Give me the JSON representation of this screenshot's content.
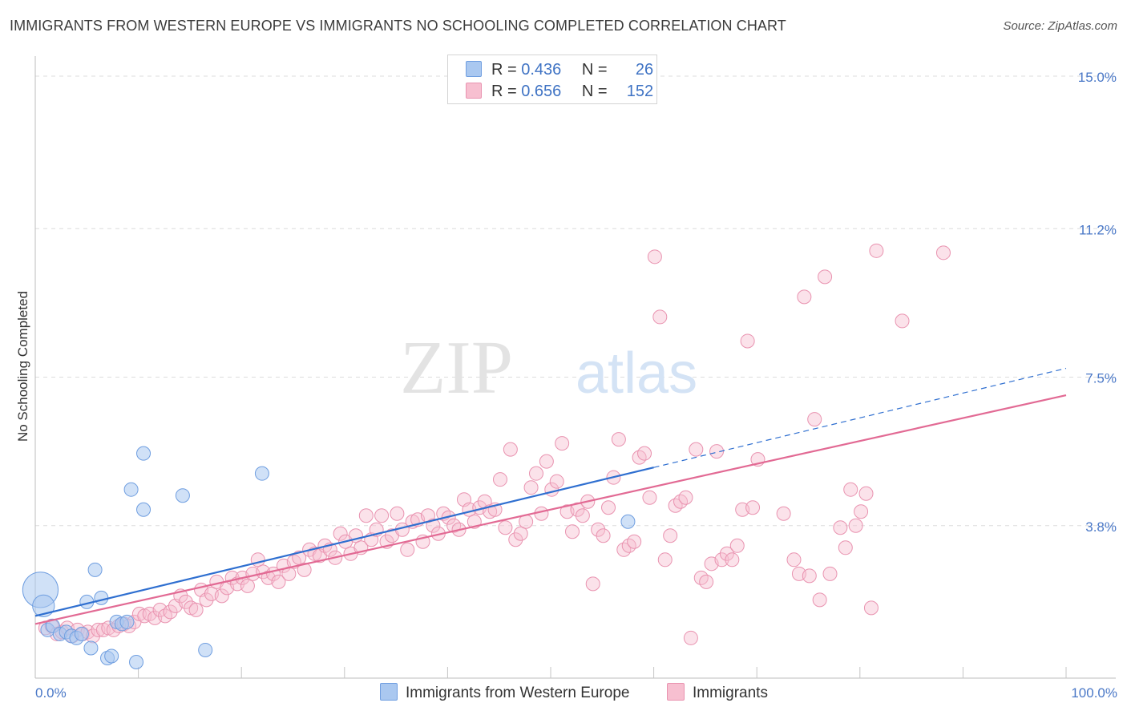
{
  "title": "IMMIGRANTS FROM WESTERN EUROPE VS IMMIGRANTS NO SCHOOLING COMPLETED CORRELATION CHART",
  "source": "Source: ZipAtlas.com",
  "watermark": {
    "zip": "ZIP",
    "atlas": "atlas"
  },
  "legend": {
    "r_label": "R =",
    "n_label": "N =",
    "series": [
      {
        "r": "0.436",
        "n": "26"
      },
      {
        "r": "0.656",
        "n": "152"
      }
    ]
  },
  "bottom_legend": [
    "Immigrants from Western Europe",
    "Immigrants"
  ],
  "colors": {
    "blue_fill": "#aac8f0",
    "blue_stroke": "#6f9ee0",
    "blue_line": "#2f6fd0",
    "pink_fill": "#f7bfd0",
    "pink_stroke": "#e993b0",
    "pink_line": "#e26a94",
    "grid": "#dcdcdc",
    "tick_text": "#4a78c7"
  },
  "chart_data": {
    "type": "scatter",
    "title": "IMMIGRANTS FROM WESTERN EUROPE VS IMMIGRANTS NO SCHOOLING COMPLETED CORRELATION CHART",
    "xlabel": "",
    "ylabel": "No Schooling Completed",
    "xlim": [
      0,
      100
    ],
    "ylim": [
      0,
      15.5
    ],
    "x_tick_labels": [
      "0.0%",
      "100.0%"
    ],
    "y_ticks": [
      3.8,
      7.5,
      11.2,
      15.0
    ],
    "y_tick_labels": [
      "3.8%",
      "7.5%",
      "11.2%",
      "15.0%"
    ],
    "series": [
      {
        "name": "Immigrants from Western Europe",
        "r": 0.436,
        "n": 26,
        "trend": {
          "x0": 0,
          "y0": 1.55,
          "x1": 60,
          "y1": 5.25,
          "dash_x1": 100,
          "dash_y1": 7.72
        },
        "points": [
          [
            0.5,
            2.2,
            2.6
          ],
          [
            0.8,
            1.8,
            1.6
          ],
          [
            1.2,
            1.2,
            1
          ],
          [
            1.7,
            1.3,
            1
          ],
          [
            2.4,
            1.1,
            1
          ],
          [
            3.0,
            1.15,
            1
          ],
          [
            3.5,
            1.05,
            1
          ],
          [
            4.0,
            1.0,
            1
          ],
          [
            4.5,
            1.1,
            1
          ],
          [
            5.0,
            1.9,
            1
          ],
          [
            5.4,
            0.75,
            1
          ],
          [
            5.8,
            2.7,
            1
          ],
          [
            6.4,
            2.0,
            1
          ],
          [
            7.0,
            0.5,
            1
          ],
          [
            7.4,
            0.55,
            1
          ],
          [
            7.9,
            1.4,
            1
          ],
          [
            8.4,
            1.35,
            1
          ],
          [
            8.9,
            1.4,
            1
          ],
          [
            9.3,
            4.7,
            1
          ],
          [
            9.8,
            0.4,
            1
          ],
          [
            10.5,
            4.2,
            1
          ],
          [
            10.5,
            5.6,
            1
          ],
          [
            14.3,
            4.55,
            1
          ],
          [
            16.5,
            0.7,
            1
          ],
          [
            22.0,
            5.1,
            1
          ],
          [
            57.5,
            3.9,
            1
          ]
        ]
      },
      {
        "name": "Immigrants",
        "r": 0.656,
        "n": 152,
        "trend": {
          "x0": 0,
          "y0": 1.35,
          "x1": 100,
          "y1": 7.05
        },
        "points": [
          [
            1.0,
            1.25
          ],
          [
            1.6,
            1.3
          ],
          [
            2.1,
            1.1
          ],
          [
            2.6,
            1.15
          ],
          [
            3.1,
            1.25
          ],
          [
            3.6,
            1.05
          ],
          [
            4.1,
            1.2
          ],
          [
            4.6,
            1.1
          ],
          [
            5.1,
            1.15
          ],
          [
            5.6,
            1.05
          ],
          [
            6.1,
            1.2
          ],
          [
            6.6,
            1.2
          ],
          [
            7.1,
            1.25
          ],
          [
            7.6,
            1.2
          ],
          [
            8.1,
            1.3
          ],
          [
            8.6,
            1.35
          ],
          [
            9.1,
            1.3
          ],
          [
            9.6,
            1.4
          ],
          [
            10.1,
            1.6
          ],
          [
            10.6,
            1.55
          ],
          [
            11.1,
            1.6
          ],
          [
            11.6,
            1.5
          ],
          [
            12.1,
            1.7
          ],
          [
            12.6,
            1.55
          ],
          [
            13.1,
            1.65
          ],
          [
            13.6,
            1.8
          ],
          [
            14.1,
            2.05
          ],
          [
            14.6,
            1.9
          ],
          [
            15.1,
            1.75
          ],
          [
            15.6,
            1.7
          ],
          [
            16.1,
            2.2
          ],
          [
            16.6,
            1.95
          ],
          [
            17.1,
            2.1
          ],
          [
            17.6,
            2.4
          ],
          [
            18.1,
            2.05
          ],
          [
            18.6,
            2.25
          ],
          [
            19.1,
            2.5
          ],
          [
            19.6,
            2.35
          ],
          [
            20.1,
            2.5
          ],
          [
            20.6,
            2.3
          ],
          [
            21.1,
            2.6
          ],
          [
            21.6,
            2.95
          ],
          [
            22.1,
            2.65
          ],
          [
            22.6,
            2.5
          ],
          [
            23.1,
            2.6
          ],
          [
            23.6,
            2.4
          ],
          [
            24.1,
            2.8
          ],
          [
            24.6,
            2.6
          ],
          [
            25.1,
            2.9
          ],
          [
            25.6,
            3.0
          ],
          [
            26.1,
            2.7
          ],
          [
            26.6,
            3.2
          ],
          [
            27.1,
            3.1
          ],
          [
            27.6,
            3.05
          ],
          [
            28.1,
            3.3
          ],
          [
            28.6,
            3.2
          ],
          [
            29.1,
            3.0
          ],
          [
            29.6,
            3.6
          ],
          [
            30.1,
            3.4
          ],
          [
            30.6,
            3.1
          ],
          [
            31.1,
            3.55
          ],
          [
            31.6,
            3.25
          ],
          [
            32.1,
            4.05
          ],
          [
            32.6,
            3.45
          ],
          [
            33.1,
            3.7
          ],
          [
            33.6,
            4.05
          ],
          [
            34.1,
            3.4
          ],
          [
            34.6,
            3.55
          ],
          [
            35.1,
            4.1
          ],
          [
            35.6,
            3.7
          ],
          [
            36.1,
            3.2
          ],
          [
            36.6,
            3.9
          ],
          [
            37.1,
            3.95
          ],
          [
            37.6,
            3.4
          ],
          [
            38.1,
            4.05
          ],
          [
            38.6,
            3.8
          ],
          [
            39.1,
            3.6
          ],
          [
            39.6,
            4.1
          ],
          [
            40.1,
            4.0
          ],
          [
            40.6,
            3.8
          ],
          [
            41.1,
            3.7
          ],
          [
            41.6,
            4.45
          ],
          [
            42.1,
            4.2
          ],
          [
            42.6,
            3.9
          ],
          [
            43.1,
            4.25
          ],
          [
            43.6,
            4.4
          ],
          [
            44.1,
            4.15
          ],
          [
            44.6,
            4.2
          ],
          [
            45.1,
            4.95
          ],
          [
            45.6,
            3.75
          ],
          [
            46.1,
            5.7
          ],
          [
            46.6,
            3.45
          ],
          [
            47.1,
            3.6
          ],
          [
            47.6,
            3.9
          ],
          [
            48.1,
            4.75
          ],
          [
            48.6,
            5.1
          ],
          [
            49.1,
            4.1
          ],
          [
            49.6,
            5.4
          ],
          [
            50.1,
            4.7
          ],
          [
            50.6,
            4.9
          ],
          [
            51.1,
            5.85
          ],
          [
            51.6,
            4.15
          ],
          [
            52.1,
            3.65
          ],
          [
            52.6,
            4.2
          ],
          [
            53.1,
            4.05
          ],
          [
            53.6,
            4.4
          ],
          [
            54.1,
            2.35
          ],
          [
            54.6,
            3.7
          ],
          [
            55.1,
            3.55
          ],
          [
            55.6,
            4.25
          ],
          [
            56.1,
            5.0
          ],
          [
            56.6,
            5.95
          ],
          [
            57.1,
            3.2
          ],
          [
            57.6,
            3.3
          ],
          [
            58.1,
            3.4
          ],
          [
            58.6,
            5.5
          ],
          [
            59.1,
            5.6
          ],
          [
            59.6,
            4.5
          ],
          [
            60.1,
            10.5
          ],
          [
            60.6,
            9.0
          ],
          [
            61.1,
            2.95
          ],
          [
            61.6,
            3.55
          ],
          [
            62.1,
            4.3
          ],
          [
            62.6,
            4.4
          ],
          [
            63.1,
            4.5
          ],
          [
            63.6,
            1.0
          ],
          [
            64.1,
            5.7
          ],
          [
            64.6,
            2.5
          ],
          [
            65.1,
            2.4
          ],
          [
            65.6,
            2.85
          ],
          [
            66.1,
            5.65
          ],
          [
            66.6,
            2.95
          ],
          [
            67.1,
            3.1
          ],
          [
            67.6,
            2.95
          ],
          [
            68.1,
            3.3
          ],
          [
            68.6,
            4.2
          ],
          [
            69.1,
            8.4
          ],
          [
            69.6,
            4.25
          ],
          [
            70.1,
            5.45
          ],
          [
            72.6,
            4.1
          ],
          [
            73.6,
            2.95
          ],
          [
            74.1,
            2.6
          ],
          [
            74.6,
            9.5
          ],
          [
            75.1,
            2.55
          ],
          [
            75.6,
            6.45
          ],
          [
            76.1,
            1.95
          ],
          [
            76.6,
            10.0
          ],
          [
            77.1,
            2.6
          ],
          [
            78.1,
            3.75
          ],
          [
            78.6,
            3.25
          ],
          [
            79.1,
            4.7
          ],
          [
            79.6,
            3.8
          ],
          [
            80.1,
            4.15
          ],
          [
            80.6,
            4.6
          ],
          [
            81.1,
            1.75
          ],
          [
            81.6,
            10.65
          ],
          [
            84.1,
            8.9
          ],
          [
            88.1,
            10.6
          ]
        ]
      }
    ]
  }
}
